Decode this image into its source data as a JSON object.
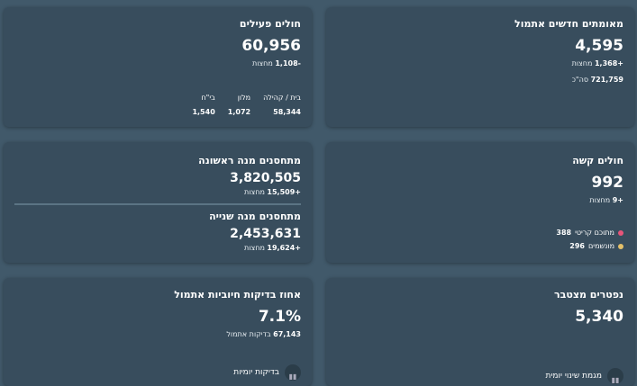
{
  "active": {
    "title": "חולים פעילים",
    "value": "60,956",
    "delta": "-1,108",
    "delta_label": "מחצות",
    "cols": [
      {
        "label": "בית / קהילה",
        "value": "58,344"
      },
      {
        "label": "מלון",
        "value": "1,072"
      },
      {
        "label": "בי\"ח",
        "value": "1,540"
      }
    ]
  },
  "confirmed": {
    "title": "מאומתים חדשים אתמול",
    "value": "4,595",
    "delta": "+1,368",
    "delta_label": "מחצות",
    "total": "721,759",
    "total_label": "סה\"כ"
  },
  "vaccinated": {
    "first_title": "מתחסנים מנה ראשונה",
    "first_value": "3,820,505",
    "first_delta": "+15,509",
    "second_title": "מתחסנים מנה שנייה",
    "second_value": "2,453,631",
    "second_delta": "+19,624",
    "delta_label": "מחצות"
  },
  "severe": {
    "title": "חולים קשה",
    "value": "992",
    "delta": "+9",
    "delta_label": "מחצות",
    "critical_label": "מתוכם קריטי",
    "critical": "388",
    "ventilated_label": "מונשמים",
    "ventilated": "296",
    "colors": {
      "critical": "#e8557a",
      "ventilated": "#e4c06a"
    }
  },
  "positive": {
    "title": "אחוז בדיקות חיוביות אתמול",
    "value": "7.1%",
    "tests": "67,143",
    "tests_label": "בדיקות אתמול",
    "footer": "בדיקות יומיות"
  },
  "deaths": {
    "title": "נפטרים מצטבר",
    "value": "5,340",
    "footer": "מגמת שינוי יומית"
  }
}
